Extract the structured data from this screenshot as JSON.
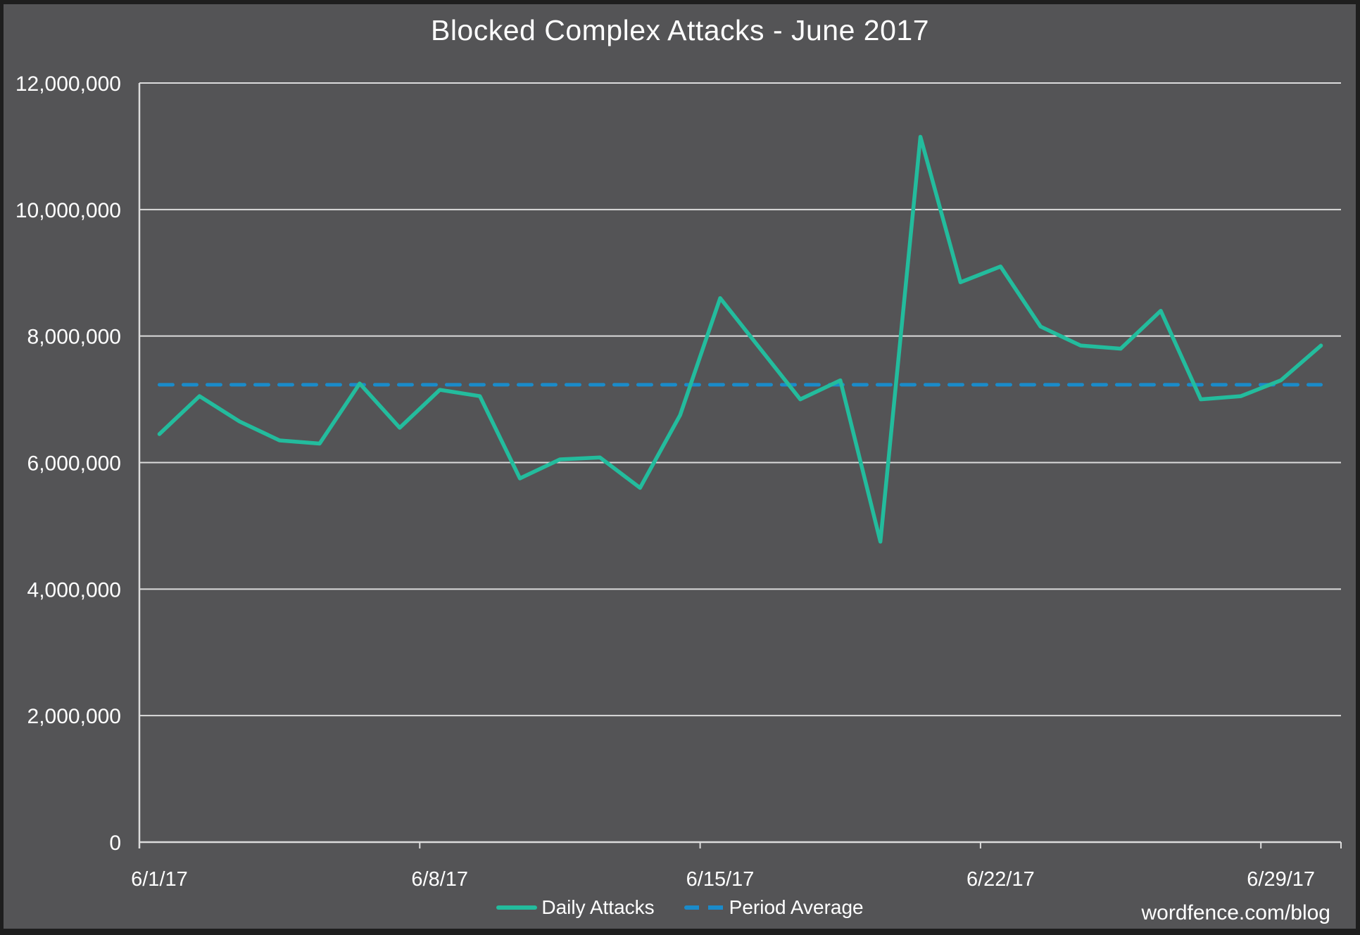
{
  "title": "Blocked Complex Attacks - June 2017",
  "footer": "wordfence.com/blog",
  "legend": {
    "daily": "Daily Attacks",
    "average": "Period Average"
  },
  "colors": {
    "background": "#545456",
    "border": "#1e1e1e",
    "daily_line": "#23bc9d",
    "average_line": "#1a8bca",
    "gridline": "#dcdcdc",
    "text": "#ffffff"
  },
  "chart_data": {
    "type": "line",
    "title": "Blocked Complex Attacks - June 2017",
    "x": [
      "6/1/17",
      "6/2/17",
      "6/3/17",
      "6/4/17",
      "6/5/17",
      "6/6/17",
      "6/7/17",
      "6/8/17",
      "6/9/17",
      "6/10/17",
      "6/11/17",
      "6/12/17",
      "6/13/17",
      "6/14/17",
      "6/15/17",
      "6/16/17",
      "6/17/17",
      "6/18/17",
      "6/19/17",
      "6/20/17",
      "6/21/17",
      "6/22/17",
      "6/23/17",
      "6/24/17",
      "6/25/17",
      "6/26/17",
      "6/27/17",
      "6/28/17",
      "6/29/17",
      "6/30/17"
    ],
    "series": [
      {
        "name": "Daily Attacks",
        "values": [
          6450000,
          7050000,
          6650000,
          6350000,
          6300000,
          7250000,
          6550000,
          7150000,
          7050000,
          5750000,
          6050000,
          6080000,
          5600000,
          6750000,
          8600000,
          7800000,
          7000000,
          7300000,
          4750000,
          11150000,
          8850000,
          9100000,
          8150000,
          7850000,
          7800000,
          8400000,
          7000000,
          7050000,
          7300000,
          7850000
        ]
      },
      {
        "name": "Period Average",
        "type": "constant",
        "value": 7230000
      }
    ],
    "x_tick_labels": [
      "6/1/17",
      "6/8/17",
      "6/15/17",
      "6/22/17",
      "6/29/17"
    ],
    "x_tick_indices": [
      0,
      7,
      14,
      21,
      28
    ],
    "y_ticks": [
      0,
      2000000,
      4000000,
      6000000,
      8000000,
      10000000,
      12000000
    ],
    "y_tick_labels": [
      "0",
      "2,000,000",
      "4,000,000",
      "6,000,000",
      "8,000,000",
      "10,000,000",
      "12,000,000"
    ],
    "ylim": [
      0,
      12000000
    ],
    "grid": "horizontal",
    "legend_position": "bottom"
  }
}
